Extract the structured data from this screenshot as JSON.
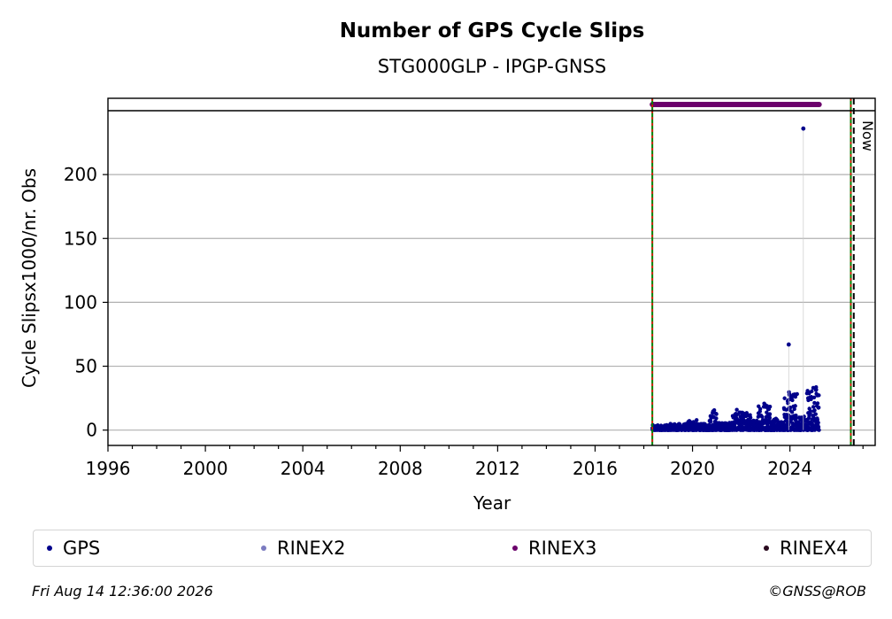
{
  "chart_data": {
    "type": "scatter",
    "title": "Number of GPS Cycle Slips",
    "subtitle": "STG000GLP - IPGP-GNSS",
    "xlabel": "Year",
    "ylabel": "Cycle Slipsx1000/nr. Obs",
    "xlim": [
      1996,
      2027.5
    ],
    "ylim": [
      -12,
      250
    ],
    "x_ticks": [
      1996,
      2000,
      2004,
      2008,
      2012,
      2016,
      2020,
      2024
    ],
    "y_ticks": [
      0,
      50,
      100,
      150,
      200
    ],
    "grid": "horizontal",
    "vlines": [
      {
        "x": 2018.35,
        "style": "red-green dashed"
      },
      {
        "x": 2026.5,
        "style": "red-green dashed"
      },
      {
        "x": 2026.62,
        "style": "black dashed",
        "label": "Now"
      }
    ],
    "rinex_bar": {
      "series": "RINEX3",
      "x_start": 2018.35,
      "x_end": 2025.2
    },
    "outliers": [
      {
        "x": 2023.95,
        "y": 67
      },
      {
        "x": 2024.55,
        "y": 236
      }
    ],
    "series": [
      {
        "name": "GPS",
        "color": "#00008b",
        "segments": [
          {
            "x0": 2018.35,
            "x1": 2019.0,
            "lo": 0,
            "hi": 4
          },
          {
            "x0": 2019.0,
            "x1": 2019.8,
            "lo": 0,
            "hi": 5
          },
          {
            "x0": 2019.8,
            "x1": 2020.2,
            "lo": 0,
            "hi": 8
          },
          {
            "x0": 2020.2,
            "x1": 2020.7,
            "lo": 0,
            "hi": 5
          },
          {
            "x0": 2020.7,
            "x1": 2021.0,
            "lo": 0,
            "hi": 17
          },
          {
            "x0": 2021.0,
            "x1": 2021.6,
            "lo": 0,
            "hi": 6
          },
          {
            "x0": 2021.6,
            "x1": 2022.0,
            "lo": 0,
            "hi": 16
          },
          {
            "x0": 2022.0,
            "x1": 2022.4,
            "lo": 0,
            "hi": 14
          },
          {
            "x0": 2022.4,
            "x1": 2022.7,
            "lo": 0,
            "hi": 8
          },
          {
            "x0": 2022.7,
            "x1": 2023.2,
            "lo": 0,
            "hi": 24
          },
          {
            "x0": 2023.2,
            "x1": 2023.5,
            "lo": 0,
            "hi": 10
          },
          {
            "x0": 2023.5,
            "x1": 2023.75,
            "lo": 0,
            "hi": 7
          },
          {
            "x0": 2023.75,
            "x1": 2024.3,
            "lo": 0,
            "hi": 30
          },
          {
            "x0": 2024.3,
            "x1": 2024.7,
            "lo": 0,
            "hi": 12
          },
          {
            "x0": 2024.7,
            "x1": 2025.2,
            "lo": 0,
            "hi": 36
          }
        ]
      },
      {
        "name": "RINEX2",
        "color": "#7b7bc0"
      },
      {
        "name": "RINEX3",
        "color": "#6b006b"
      },
      {
        "name": "RINEX4",
        "color": "#2a0a1f"
      }
    ]
  },
  "legend": {
    "items": [
      {
        "label": "GPS",
        "color": "#00008b"
      },
      {
        "label": "RINEX2",
        "color": "#7b7bc0"
      },
      {
        "label": "RINEX3",
        "color": "#6b006b"
      },
      {
        "label": "RINEX4",
        "color": "#2a0a1f"
      }
    ]
  },
  "footer": {
    "date": "Fri Aug 14 12:36:00 2026",
    "credit": "©GNSS@ROB"
  }
}
